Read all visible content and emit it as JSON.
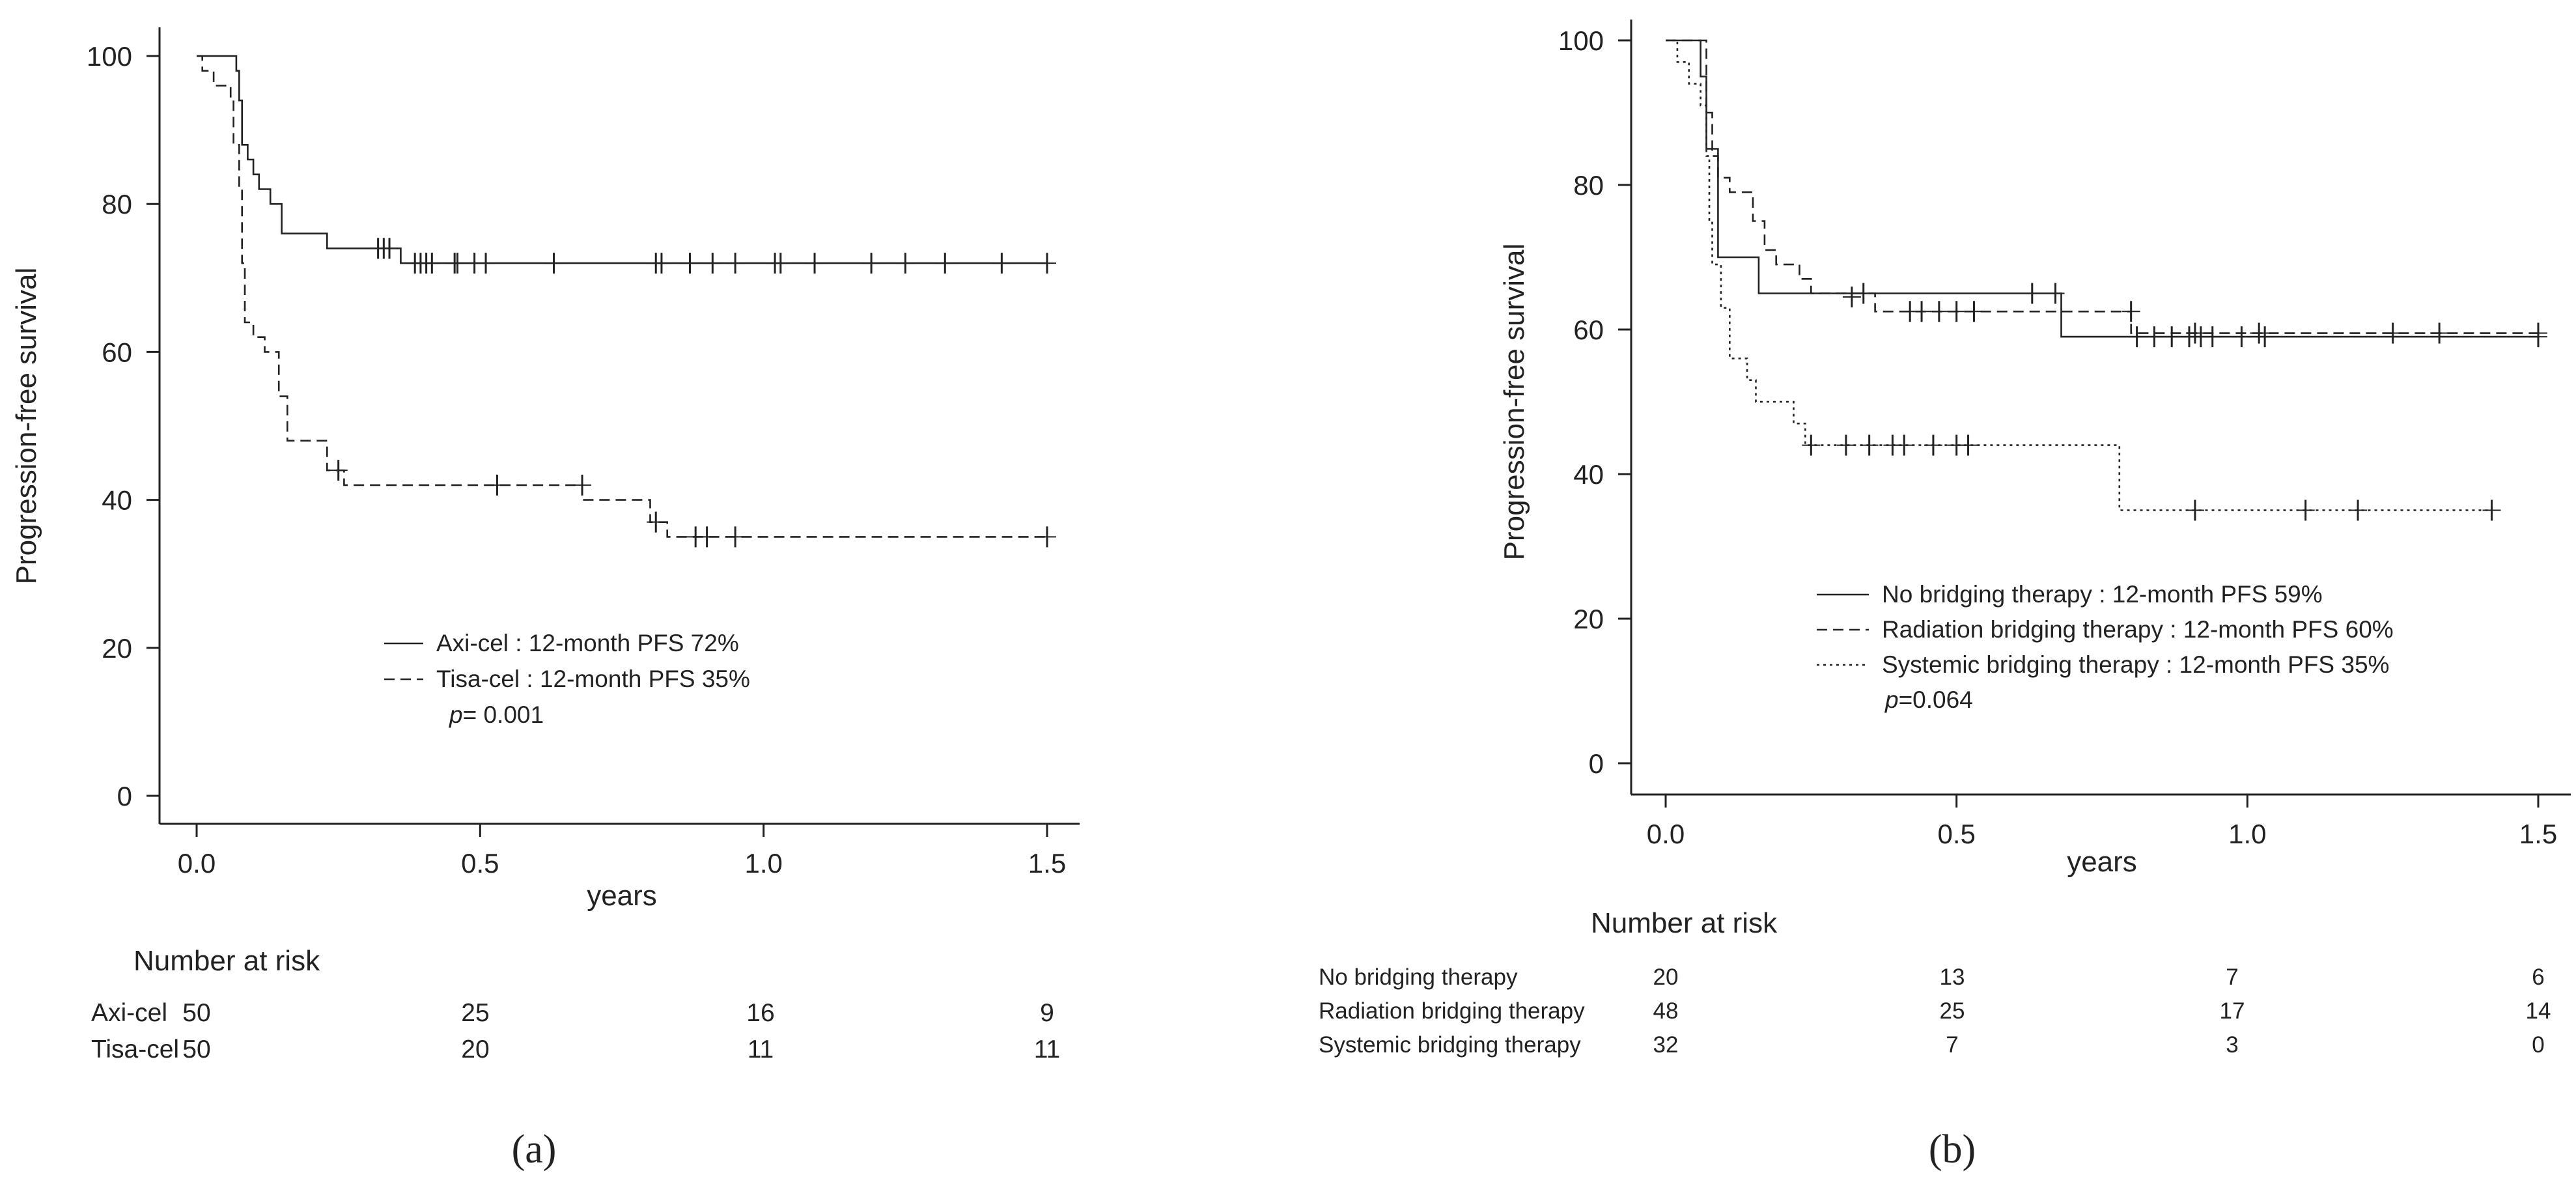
{
  "panel_captions": [
    "(a)",
    "(b)"
  ],
  "chart_data": [
    {
      "type": "line",
      "title": "",
      "panel": "(a)",
      "xlabel": "years",
      "ylabel": "Progression-free survival",
      "xlim": [
        0,
        1.5
      ],
      "ylim": [
        0,
        100
      ],
      "xticks": [
        "0.0",
        "0.5",
        "1.0",
        "1.5"
      ],
      "yticks": [
        "0",
        "20",
        "40",
        "60",
        "80",
        "100"
      ],
      "legend_position": "lower-right",
      "p_value_label": "p",
      "p_value_text": "= 0.001",
      "series": [
        {
          "name": "Axi-cel : 12-month PFS 72%",
          "style": "solid",
          "steps": [
            [
              0,
              100
            ],
            [
              0.07,
              98
            ],
            [
              0.075,
              94
            ],
            [
              0.08,
              88
            ],
            [
              0.09,
              86
            ],
            [
              0.1,
              84
            ],
            [
              0.11,
              82
            ],
            [
              0.13,
              80
            ],
            [
              0.15,
              76
            ],
            [
              0.23,
              74
            ],
            [
              0.36,
              72
            ],
            [
              1.5,
              72
            ]
          ],
          "censored": [
            [
              0.32,
              74
            ],
            [
              0.33,
              74
            ],
            [
              0.34,
              74
            ],
            [
              0.385,
              72
            ],
            [
              0.395,
              72
            ],
            [
              0.405,
              72
            ],
            [
              0.415,
              72
            ],
            [
              0.455,
              72
            ],
            [
              0.46,
              72
            ],
            [
              0.49,
              72
            ],
            [
              0.51,
              72
            ],
            [
              0.63,
              72
            ],
            [
              0.81,
              72
            ],
            [
              0.82,
              72
            ],
            [
              0.87,
              72
            ],
            [
              0.91,
              72
            ],
            [
              0.95,
              72
            ],
            [
              1.02,
              72
            ],
            [
              1.03,
              72
            ],
            [
              1.09,
              72
            ],
            [
              1.19,
              72
            ],
            [
              1.25,
              72
            ],
            [
              1.32,
              72
            ],
            [
              1.42,
              72
            ],
            [
              1.5,
              72
            ]
          ]
        },
        {
          "name": "Tisa-cel : 12-month PFS 35%",
          "style": "dashed",
          "steps": [
            [
              0,
              100
            ],
            [
              0.01,
              98
            ],
            [
              0.03,
              96
            ],
            [
              0.06,
              94
            ],
            [
              0.065,
              88
            ],
            [
              0.075,
              82
            ],
            [
              0.08,
              72
            ],
            [
              0.085,
              64
            ],
            [
              0.1,
              62
            ],
            [
              0.12,
              60
            ],
            [
              0.145,
              54
            ],
            [
              0.16,
              48
            ],
            [
              0.23,
              44
            ],
            [
              0.26,
              42
            ],
            [
              0.68,
              40
            ],
            [
              0.8,
              37
            ],
            [
              0.83,
              35
            ],
            [
              1.5,
              35
            ]
          ],
          "censored": [
            [
              0.25,
              44
            ],
            [
              0.53,
              42
            ],
            [
              0.68,
              42
            ],
            [
              0.81,
              37
            ],
            [
              0.88,
              35
            ],
            [
              0.9,
              35
            ],
            [
              0.95,
              35
            ],
            [
              1.5,
              35
            ]
          ]
        }
      ],
      "risk_table": {
        "header": "Number at risk",
        "rows": [
          {
            "label": "Axi-cel",
            "counts": [
              "50",
              "25",
              "16",
              "9"
            ]
          },
          {
            "label": "Tisa-cel",
            "counts": [
              "50",
              "20",
              "11",
              "11"
            ]
          }
        ]
      }
    },
    {
      "type": "line",
      "title": "",
      "panel": "(b)",
      "xlabel": "years",
      "ylabel": "Progression-free survival",
      "xlim": [
        0,
        1.5
      ],
      "ylim": [
        0,
        100
      ],
      "xticks": [
        "0.0",
        "0.5",
        "1.0",
        "1.5"
      ],
      "yticks": [
        "0",
        "20",
        "40",
        "60",
        "80",
        "100"
      ],
      "legend_position": "lower-right",
      "p_value_label": "p",
      "p_value_text": "=0.064",
      "series": [
        {
          "name": "No bridging therapy : 12-month PFS 59%",
          "style": "solid",
          "steps": [
            [
              0,
              100
            ],
            [
              0.06,
              95
            ],
            [
              0.07,
              85
            ],
            [
              0.09,
              70
            ],
            [
              0.16,
              65
            ],
            [
              0.68,
              59
            ],
            [
              1.5,
              59
            ]
          ],
          "censored": [
            [
              0.34,
              65
            ],
            [
              0.63,
              65
            ],
            [
              0.67,
              65
            ],
            [
              0.81,
              59
            ],
            [
              0.84,
              59
            ],
            [
              0.87,
              59
            ],
            [
              0.9,
              59
            ],
            [
              0.92,
              59
            ],
            [
              0.94,
              59
            ],
            [
              0.99,
              59
            ],
            [
              1.03,
              59
            ],
            [
              1.5,
              59
            ]
          ]
        },
        {
          "name": "Radiation bridging therapy : 12-month PFS 60%",
          "style": "dashed",
          "steps": [
            [
              0,
              100
            ],
            [
              0.07,
              90
            ],
            [
              0.08,
              84
            ],
            [
              0.09,
              81
            ],
            [
              0.11,
              79
            ],
            [
              0.15,
              75
            ],
            [
              0.17,
              71
            ],
            [
              0.19,
              69
            ],
            [
              0.23,
              67
            ],
            [
              0.25,
              65
            ],
            [
              0.36,
              62.5
            ],
            [
              0.8,
              59.5
            ],
            [
              1.5,
              59.5
            ]
          ],
          "censored": [
            [
              0.32,
              64.5
            ],
            [
              0.42,
              62.5
            ],
            [
              0.44,
              62.5
            ],
            [
              0.47,
              62.5
            ],
            [
              0.5,
              62.5
            ],
            [
              0.53,
              62.5
            ],
            [
              0.8,
              62.5
            ],
            [
              0.91,
              59.5
            ],
            [
              1.02,
              59.5
            ],
            [
              1.25,
              59.5
            ],
            [
              1.33,
              59.5
            ],
            [
              1.5,
              59.5
            ]
          ]
        },
        {
          "name": "Systemic bridging therapy : 12-month PFS 35%",
          "style": "dotted",
          "steps": [
            [
              0,
              100
            ],
            [
              0.02,
              97
            ],
            [
              0.04,
              94
            ],
            [
              0.06,
              91
            ],
            [
              0.07,
              84
            ],
            [
              0.075,
              75
            ],
            [
              0.08,
              69
            ],
            [
              0.095,
              63
            ],
            [
              0.11,
              56
            ],
            [
              0.14,
              53
            ],
            [
              0.155,
              50
            ],
            [
              0.22,
              47
            ],
            [
              0.24,
              44
            ],
            [
              0.78,
              35
            ],
            [
              1.42,
              35
            ]
          ],
          "censored": [
            [
              0.25,
              44
            ],
            [
              0.31,
              44
            ],
            [
              0.35,
              44
            ],
            [
              0.39,
              44
            ],
            [
              0.41,
              44
            ],
            [
              0.46,
              44
            ],
            [
              0.5,
              44
            ],
            [
              0.52,
              44
            ],
            [
              0.91,
              35
            ],
            [
              1.1,
              35
            ],
            [
              1.19,
              35
            ],
            [
              1.42,
              35
            ]
          ]
        }
      ],
      "risk_table": {
        "header": "Number at risk",
        "rows": [
          {
            "label": "No bridging therapy",
            "counts": [
              "20",
              "13",
              "7",
              "6"
            ]
          },
          {
            "label": "Radiation bridging therapy",
            "counts": [
              "48",
              "25",
              "17",
              "14"
            ]
          },
          {
            "label": "Systemic bridging therapy",
            "counts": [
              "32",
              "7",
              "3",
              "0"
            ]
          }
        ]
      }
    }
  ]
}
